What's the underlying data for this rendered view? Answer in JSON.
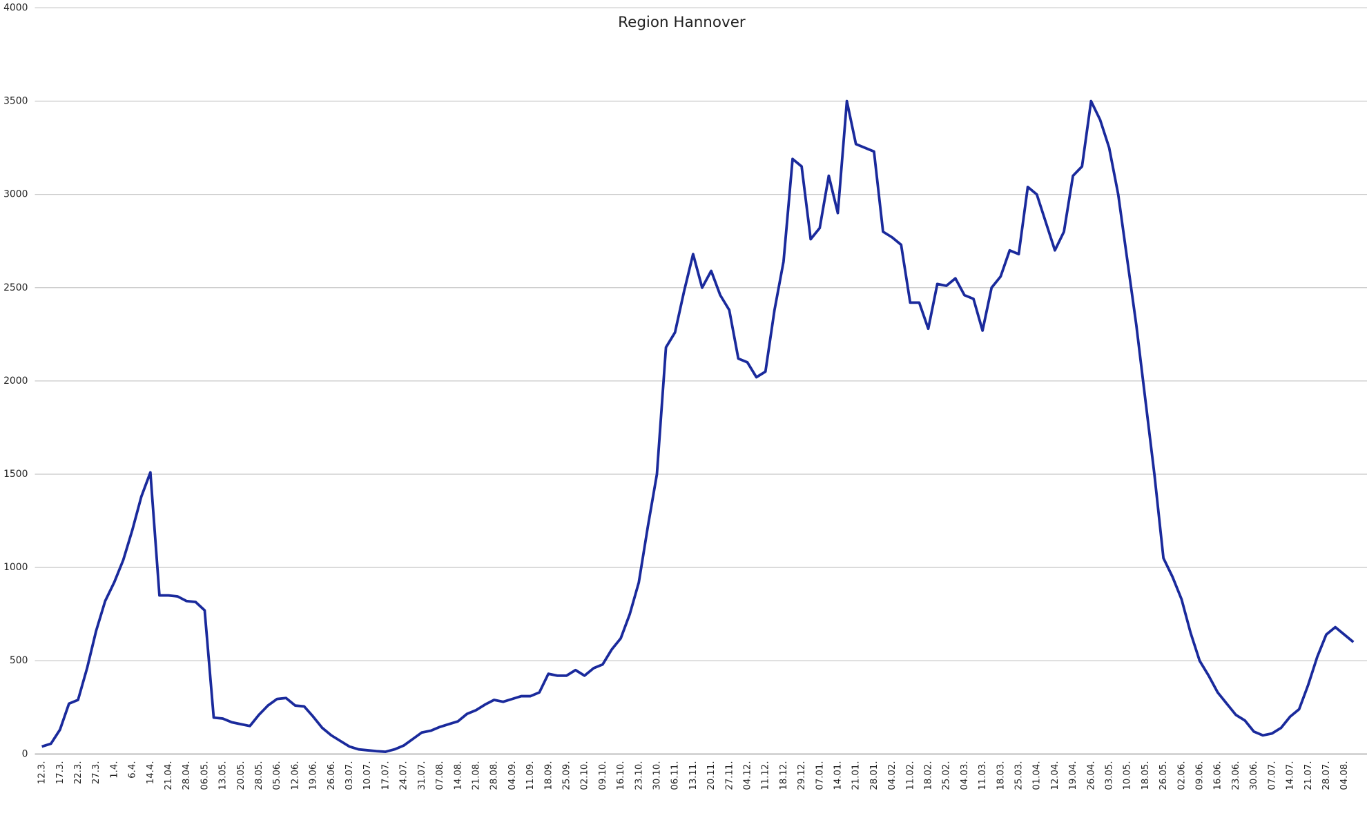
{
  "chart_data": {
    "type": "line",
    "title": "Region Hannover",
    "categories": [
      "12.3.",
      null,
      "17.3.",
      null,
      "22.3.",
      null,
      "27.3.",
      null,
      "1.4.",
      null,
      "6.4.",
      null,
      "14.4.",
      null,
      "21.04.",
      null,
      "28.04.",
      null,
      "06.05.",
      null,
      "13.05.",
      null,
      "20.05.",
      null,
      "28.05.",
      null,
      "05.06.",
      null,
      "12.06.",
      null,
      "19.06.",
      null,
      "26.06.",
      null,
      "03.07.",
      null,
      "10.07.",
      null,
      "17.07.",
      null,
      "24.07.",
      null,
      "31.07.",
      null,
      "07.08.",
      null,
      "14.08.",
      null,
      "21.08.",
      null,
      "28.08.",
      null,
      "04.09.",
      null,
      "11.09.",
      null,
      "18.09.",
      null,
      "25.09.",
      null,
      "02.10.",
      null,
      "09.10.",
      null,
      "16.10.",
      null,
      "23.10.",
      null,
      "30.10.",
      null,
      "06.11.",
      null,
      "13.11.",
      null,
      "20.11.",
      null,
      "27.11.",
      null,
      "04.12.",
      null,
      "11.12.",
      null,
      "18.12.",
      null,
      "29.12.",
      null,
      "07.01.",
      null,
      "14.01.",
      null,
      "21.01.",
      null,
      "28.01.",
      null,
      "04.02.",
      null,
      "11.02.",
      null,
      "18.02.",
      null,
      "25.02.",
      null,
      "04.03.",
      null,
      "11.03.",
      null,
      "18.03.",
      null,
      "25.03.",
      null,
      "01.04.",
      null,
      "12.04.",
      null,
      "19.04.",
      null,
      "26.04.",
      null,
      "03.05.",
      null,
      "10.05.",
      null,
      "18.05.",
      null,
      "26.05.",
      null,
      "02.06.",
      null,
      "09.06.",
      null,
      "16.06.",
      null,
      "23.06.",
      null,
      "30.06.",
      null,
      "07.07.",
      null,
      "14.07.",
      null,
      "21.07.",
      null,
      "28.07.",
      null,
      "04.08.",
      null
    ],
    "series": [
      {
        "name": "Region Hannover",
        "color": "#1a2a9c",
        "values": [
          40,
          55,
          130,
          270,
          290,
          460,
          660,
          820,
          920,
          1040,
          1200,
          1380,
          1510,
          850,
          850,
          845,
          820,
          815,
          770,
          195,
          190,
          170,
          160,
          150,
          210,
          260,
          295,
          300,
          260,
          255,
          200,
          140,
          100,
          70,
          40,
          25,
          20,
          15,
          12,
          25,
          45,
          80,
          115,
          125,
          145,
          160,
          175,
          215,
          235,
          265,
          290,
          280,
          295,
          310,
          310,
          330,
          430,
          420,
          420,
          450,
          420,
          460,
          480,
          560,
          620,
          750,
          920,
          1220,
          1500,
          2180,
          2260,
          2480,
          2680,
          2500,
          2590,
          2460,
          2380,
          2120,
          2100,
          2020,
          2050,
          2380,
          2640,
          3190,
          3150,
          2760,
          2820,
          3100,
          2900,
          3500,
          3270,
          3250,
          3230,
          2800,
          2770,
          2730,
          2420,
          2420,
          2280,
          2520,
          2510,
          2550,
          2460,
          2440,
          2270,
          2500,
          2560,
          2700,
          2680,
          3040,
          3000,
          2850,
          2700,
          2800,
          3100,
          3150,
          3500,
          3400,
          3250,
          3000,
          2650,
          2300,
          1900,
          1500,
          1050,
          950,
          830,
          650,
          500,
          420,
          330,
          270,
          210,
          180,
          120,
          100,
          110,
          140,
          200,
          240,
          370,
          520,
          640,
          680,
          640,
          600
        ]
      }
    ],
    "ylim": [
      0,
      4000
    ],
    "yticks": [
      0,
      500,
      1000,
      1500,
      2000,
      2500,
      3000,
      3500,
      4000
    ],
    "grid": true
  }
}
